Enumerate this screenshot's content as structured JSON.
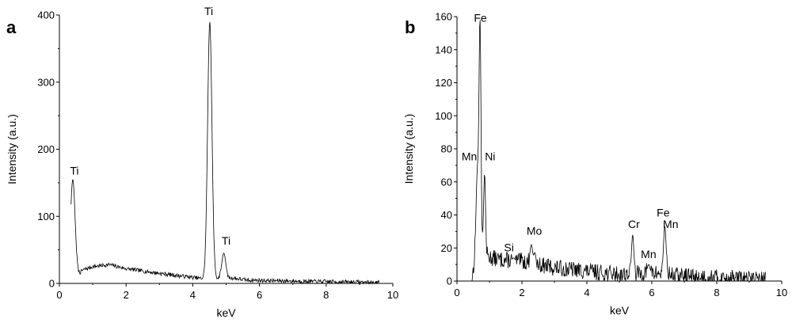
{
  "chart_data": [
    {
      "type": "line",
      "panel_label": "a",
      "xlabel": "keV",
      "ylabel": "Intensity (a.u.)",
      "xlim": [
        0,
        10
      ],
      "ylim": [
        0,
        400
      ],
      "x_ticks": [
        0,
        2,
        4,
        6,
        8,
        10
      ],
      "y_ticks": [
        0,
        100,
        200,
        300,
        400
      ],
      "grid": false,
      "baseline": [
        [
          0.35,
          0
        ],
        [
          0.7,
          20
        ],
        [
          1.0,
          25
        ],
        [
          1.5,
          28
        ],
        [
          2.0,
          22
        ],
        [
          3.0,
          15
        ],
        [
          4.0,
          9
        ],
        [
          4.3,
          7
        ],
        [
          5.2,
          8
        ],
        [
          5.6,
          5
        ],
        [
          6.5,
          4
        ],
        [
          7.5,
          3
        ],
        [
          9.0,
          2
        ],
        [
          9.6,
          1
        ]
      ],
      "peaks": [
        {
          "x": 0.4,
          "y": 155,
          "width": 0.07
        },
        {
          "x": 4.51,
          "y": 390,
          "width": 0.065
        },
        {
          "x": 4.93,
          "y": 45,
          "width": 0.06
        }
      ],
      "noise": 3,
      "seed": 7,
      "annotations": [
        {
          "text": "Ti",
          "x": 0.45,
          "y": 162
        },
        {
          "text": "Ti",
          "x": 4.48,
          "y": 400
        },
        {
          "text": "Ti",
          "x": 5.0,
          "y": 58
        }
      ]
    },
    {
      "type": "line",
      "panel_label": "b",
      "xlabel": "keV",
      "ylabel": "Intensity (a.u.)",
      "xlim": [
        0,
        10
      ],
      "ylim": [
        0,
        160
      ],
      "x_ticks": [
        0,
        2,
        4,
        6,
        8,
        10
      ],
      "y_ticks": [
        0,
        20,
        40,
        60,
        80,
        100,
        120,
        140,
        160
      ],
      "grid": false,
      "baseline": [
        [
          0.45,
          0
        ],
        [
          0.6,
          20
        ],
        [
          0.9,
          15
        ],
        [
          1.3,
          13
        ],
        [
          2.0,
          12
        ],
        [
          3.0,
          8
        ],
        [
          4.0,
          6
        ],
        [
          5.0,
          4
        ],
        [
          6.0,
          5
        ],
        [
          7.0,
          3
        ],
        [
          8.0,
          2
        ],
        [
          9.5,
          1
        ]
      ],
      "peaks": [
        {
          "x": 0.63,
          "y": 66,
          "width": 0.04
        },
        {
          "x": 0.71,
          "y": 153,
          "width": 0.03
        },
        {
          "x": 0.85,
          "y": 65,
          "width": 0.03
        },
        {
          "x": 1.74,
          "y": 14,
          "width": 0.04
        },
        {
          "x": 2.29,
          "y": 22,
          "width": 0.04
        },
        {
          "x": 2.4,
          "y": 17,
          "width": 0.03
        },
        {
          "x": 5.41,
          "y": 28,
          "width": 0.035
        },
        {
          "x": 5.9,
          "y": 10,
          "width": 0.04
        },
        {
          "x": 6.4,
          "y": 33,
          "width": 0.04
        }
      ],
      "noise": 5,
      "seed": 13,
      "annotations": [
        {
          "text": "Fe",
          "x": 0.72,
          "y": 157
        },
        {
          "text": "Mn",
          "x": 0.38,
          "y": 73
        },
        {
          "text": "Ni",
          "x": 1.02,
          "y": 73
        },
        {
          "text": "Si",
          "x": 1.6,
          "y": 18
        },
        {
          "text": "Mo",
          "x": 2.38,
          "y": 28
        },
        {
          "text": "Cr",
          "x": 5.45,
          "y": 32
        },
        {
          "text": "Mn",
          "x": 5.9,
          "y": 14
        },
        {
          "text": "Fe",
          "x": 6.35,
          "y": 39
        },
        {
          "text": "Mn",
          "x": 6.58,
          "y": 32
        }
      ]
    }
  ]
}
